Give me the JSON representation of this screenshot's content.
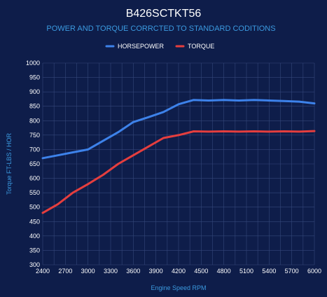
{
  "chart_data": {
    "type": "line",
    "title": "B426SCTKT56",
    "subtitle": "POWER AND TORQUE CORRCTED TO STANDARD CODITIONS",
    "xlabel": "Engine Speed RPM",
    "ylabel": "Torque FT-LBS / HOR",
    "xlim": [
      2400,
      6000
    ],
    "ylim": [
      300,
      1000
    ],
    "x_ticks": [
      2400,
      2700,
      3000,
      3300,
      3600,
      3900,
      4200,
      4500,
      4800,
      5100,
      5400,
      5700,
      6000
    ],
    "y_ticks": [
      300,
      350,
      400,
      450,
      500,
      550,
      600,
      650,
      700,
      750,
      800,
      850,
      900,
      950,
      1000
    ],
    "grid": true,
    "legend_position": "top-center",
    "x": [
      2400,
      2600,
      2800,
      3000,
      3200,
      3400,
      3600,
      3800,
      4000,
      4200,
      4400,
      4600,
      4800,
      5000,
      5200,
      5400,
      5600,
      5800,
      6000
    ],
    "series": [
      {
        "name": "HORSEPOWER",
        "color": "#3d82ea",
        "values": [
          670,
          680,
          690,
          700,
          730,
          760,
          795,
          812,
          830,
          857,
          872,
          870,
          872,
          870,
          872,
          870,
          868,
          866,
          860
        ]
      },
      {
        "name": "TORQUE",
        "color": "#e53e3e",
        "values": [
          480,
          510,
          550,
          580,
          612,
          650,
          680,
          710,
          740,
          750,
          763,
          762,
          763,
          762,
          763,
          762,
          763,
          762,
          764
        ]
      }
    ]
  }
}
